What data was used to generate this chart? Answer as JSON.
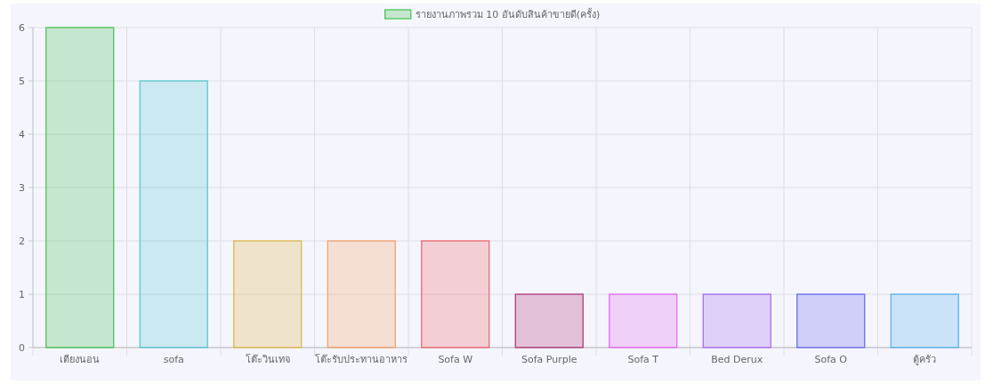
{
  "chart_data": {
    "type": "bar",
    "categories": [
      "เตียงนอน",
      "sofa",
      "โต๊ะวินเทจ",
      "โต๊ะรับประทานอาหาร",
      "Sofa W",
      "Sofa Purple",
      "Sofa T",
      "Bed Derux",
      "Sofa O",
      "ตู้ครัว"
    ],
    "series": [
      {
        "name": "รายงานภาพรวม 10 อันดับสินค้าขายดี(ครั้ง)",
        "values": [
          6,
          5,
          2,
          2,
          2,
          1,
          1,
          1,
          1,
          1
        ]
      }
    ],
    "colors": [
      "#4cc35a",
      "#5bc8d0",
      "#e0b84a",
      "#f5a36a",
      "#f0676e",
      "#b03a7a",
      "#e46cf0",
      "#a66ef0",
      "#6a6cf0",
      "#5ab4ec"
    ],
    "ylim": [
      0,
      6
    ],
    "yticks": [
      0,
      1,
      2,
      3,
      4,
      5,
      6
    ],
    "grid": true,
    "legend": "top"
  }
}
